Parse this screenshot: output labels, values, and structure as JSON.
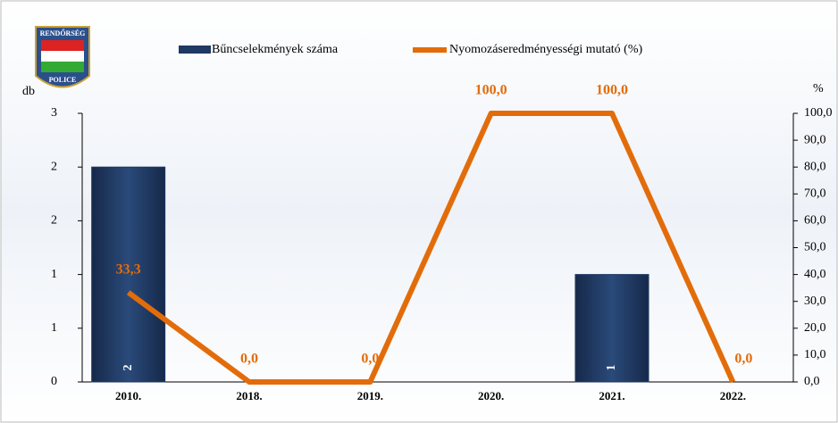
{
  "chart_data": {
    "type": "bar_line",
    "logo": {
      "top": "RENDŐRSÉG",
      "bottom": "POLICE"
    },
    "categories": [
      "2010.",
      "2018.",
      "2019.",
      "2020.",
      "2021.",
      "2022."
    ],
    "series": [
      {
        "name": "Bűncselekmények száma",
        "color": "#1f3864",
        "values": [
          2,
          0,
          0,
          0,
          1,
          0
        ]
      },
      {
        "name": "Nyomozáseredményességi mutató (%)",
        "color": "#e36c0a",
        "axis": "y2",
        "values": [
          33.3,
          0,
          0,
          100,
          100,
          0
        ],
        "value_labels": [
          "33,3",
          "0,0",
          "0,0",
          "100,0",
          "100,0",
          "0,0"
        ]
      }
    ],
    "ylabel": "db",
    "y2label": "%",
    "ylim": [
      0,
      2.5
    ],
    "yticks": [
      0,
      {
        "value": 0.5,
        "label": "1"
      },
      1,
      {
        "value": 1.5,
        "label": "2"
      },
      2,
      {
        "value": 2.5,
        "label": "3"
      }
    ],
    "y2lim": [
      0,
      100
    ],
    "y2ticks": [
      {
        "value": 0,
        "label": "0,0"
      },
      {
        "value": 10,
        "label": "10,0"
      },
      {
        "value": 20,
        "label": "20,0"
      },
      {
        "value": 30,
        "label": "30,0"
      },
      {
        "value": 40,
        "label": "40,0"
      },
      {
        "value": 50,
        "label": "50,0"
      },
      {
        "value": 60,
        "label": "60,0"
      },
      {
        "value": 70,
        "label": "70,0"
      },
      {
        "value": 80,
        "label": "80,0"
      },
      {
        "value": 90,
        "label": "90,0"
      },
      {
        "value": 100,
        "label": "100,0"
      }
    ]
  }
}
